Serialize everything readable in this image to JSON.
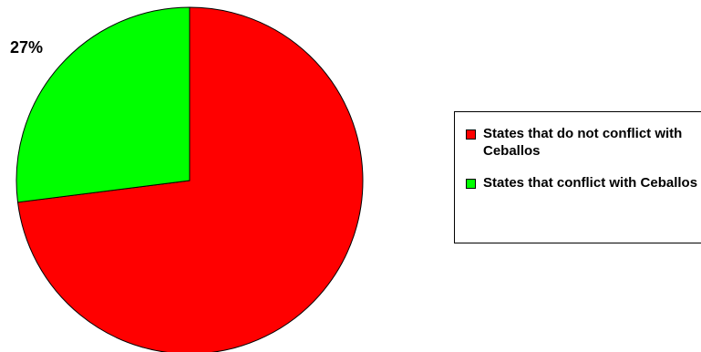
{
  "chart_data": {
    "type": "pie",
    "categories": [
      "States that do not conflict with Ceballos",
      "States that conflict with Ceballos"
    ],
    "values": [
      73,
      27
    ],
    "colors": [
      "#ff0000",
      "#00ff00"
    ],
    "data_labels": [
      "",
      "27%"
    ],
    "legend": {
      "placement": "right",
      "entries": [
        "States that do not conflict with Ceballos",
        "States that conflict with Ceballos"
      ]
    },
    "title": "",
    "start_angle": "12 o'clock",
    "direction": "clockwise"
  }
}
